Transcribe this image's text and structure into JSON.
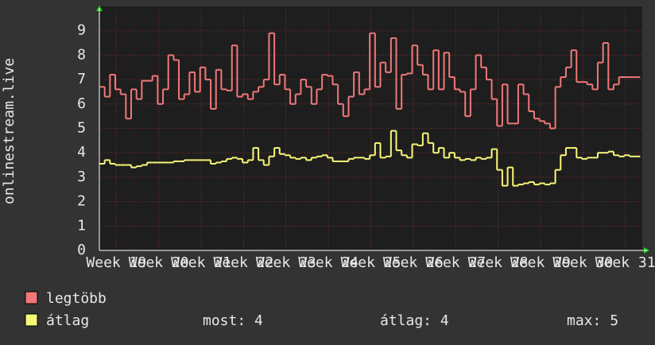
{
  "chart_data": {
    "type": "step",
    "ylabel": "onlinestream.live",
    "x": [
      18.6,
      18.725,
      18.85,
      18.975,
      19.1,
      19.225,
      19.35,
      19.475,
      19.6,
      19.725,
      19.85,
      19.975,
      20.1,
      20.225,
      20.35,
      20.475,
      20.6,
      20.725,
      20.85,
      20.975,
      21.1,
      21.225,
      21.35,
      21.475,
      21.6,
      21.725,
      21.85,
      21.975,
      22.1,
      22.225,
      22.35,
      22.475,
      22.6,
      22.725,
      22.85,
      22.975,
      23.1,
      23.225,
      23.35,
      23.475,
      23.6,
      23.725,
      23.85,
      23.975,
      24.1,
      24.225,
      24.35,
      24.475,
      24.6,
      24.725,
      24.85,
      24.975,
      25.1,
      25.225,
      25.35,
      25.475,
      25.6,
      25.725,
      25.85,
      25.975,
      26.1,
      26.225,
      26.35,
      26.475,
      26.6,
      26.725,
      26.85,
      26.975,
      27.1,
      27.225,
      27.35,
      27.475,
      27.6,
      27.725,
      27.85,
      27.975,
      28.1,
      28.225,
      28.35,
      28.475,
      28.6,
      28.725,
      28.85,
      28.975,
      29.1,
      29.225,
      29.35,
      29.475,
      29.6,
      29.725,
      29.85,
      29.975,
      30.1,
      30.225,
      30.35,
      30.475,
      30.6,
      30.725,
      30.85,
      30.975,
      31.1,
      31.225
    ],
    "series": [
      {
        "name": "legtöbb",
        "color": "#f07878",
        "values": [
          6.7,
          6.3,
          7.2,
          6.6,
          6.4,
          5.4,
          6.6,
          6.2,
          6.95,
          6.95,
          7.15,
          6.0,
          6.6,
          8.0,
          7.8,
          6.2,
          6.4,
          7.3,
          6.5,
          7.5,
          7.0,
          5.8,
          7.4,
          6.6,
          6.55,
          8.4,
          6.3,
          6.4,
          6.2,
          6.5,
          6.7,
          7.0,
          8.9,
          6.8,
          7.2,
          6.6,
          6.0,
          6.4,
          7.0,
          6.7,
          6.0,
          6.6,
          7.2,
          7.15,
          6.8,
          6.0,
          5.5,
          6.3,
          7.3,
          6.4,
          6.6,
          8.9,
          6.7,
          7.7,
          7.3,
          8.7,
          5.8,
          7.2,
          7.25,
          8.4,
          7.6,
          7.2,
          6.6,
          8.2,
          6.6,
          8.1,
          7.1,
          6.6,
          6.5,
          5.5,
          6.6,
          8.0,
          7.5,
          7.0,
          6.2,
          5.1,
          6.8,
          5.2,
          5.2,
          6.8,
          6.4,
          5.7,
          5.4,
          5.3,
          5.2,
          5.0,
          6.7,
          7.1,
          7.5,
          8.2,
          6.9,
          6.9,
          6.8,
          6.6,
          7.7,
          8.5,
          6.6,
          6.8,
          7.1,
          7.1,
          7.1,
          7.1
        ]
      },
      {
        "name": "átlag",
        "color": "#f8f878",
        "values": [
          3.55,
          3.7,
          3.55,
          3.5,
          3.5,
          3.5,
          3.4,
          3.45,
          3.5,
          3.6,
          3.6,
          3.6,
          3.6,
          3.6,
          3.65,
          3.65,
          3.7,
          3.7,
          3.7,
          3.7,
          3.7,
          3.55,
          3.6,
          3.65,
          3.75,
          3.8,
          3.75,
          3.6,
          3.7,
          4.2,
          3.7,
          3.5,
          3.85,
          4.2,
          3.95,
          3.9,
          3.8,
          3.75,
          3.8,
          3.7,
          3.8,
          3.85,
          3.9,
          3.8,
          3.65,
          3.65,
          3.65,
          3.75,
          3.8,
          3.8,
          3.75,
          3.9,
          4.4,
          3.8,
          3.85,
          4.9,
          4.1,
          3.9,
          3.8,
          4.35,
          4.3,
          4.8,
          4.4,
          4.0,
          4.2,
          3.8,
          4.0,
          3.8,
          3.7,
          3.75,
          3.7,
          3.8,
          3.75,
          3.8,
          4.15,
          3.3,
          2.65,
          3.4,
          2.65,
          2.7,
          2.75,
          2.8,
          2.7,
          2.75,
          2.7,
          2.75,
          3.3,
          3.9,
          4.2,
          4.2,
          3.8,
          3.75,
          3.8,
          3.8,
          4.0,
          4.0,
          4.05,
          3.9,
          3.85,
          3.9,
          3.85,
          3.85
        ]
      }
    ],
    "xlim": [
      18.6,
      31.4
    ],
    "xticks": [
      {
        "value": 19,
        "label": "Week 19"
      },
      {
        "value": 20,
        "label": "Week 20"
      },
      {
        "value": 21,
        "label": "Week 21"
      },
      {
        "value": 22,
        "label": "Week 22"
      },
      {
        "value": 23,
        "label": "Week 23"
      },
      {
        "value": 24,
        "label": "Week 24"
      },
      {
        "value": 25,
        "label": "Week 25"
      },
      {
        "value": 26,
        "label": "Week 26"
      },
      {
        "value": 27,
        "label": "Week 27"
      },
      {
        "value": 28,
        "label": "Week 28"
      },
      {
        "value": 29,
        "label": "Week 29"
      },
      {
        "value": 30,
        "label": "Week 30"
      },
      {
        "value": 31,
        "label": "Week 31"
      }
    ],
    "ylim": [
      0,
      10
    ],
    "yticks": [
      0,
      1,
      2,
      3,
      4,
      5,
      6,
      7,
      8,
      9
    ],
    "grid": true,
    "stats": [
      {
        "label": "most:",
        "value": 4
      },
      {
        "label": "átlag:",
        "value": 4
      },
      {
        "label": "max:",
        "value": 5
      }
    ]
  }
}
